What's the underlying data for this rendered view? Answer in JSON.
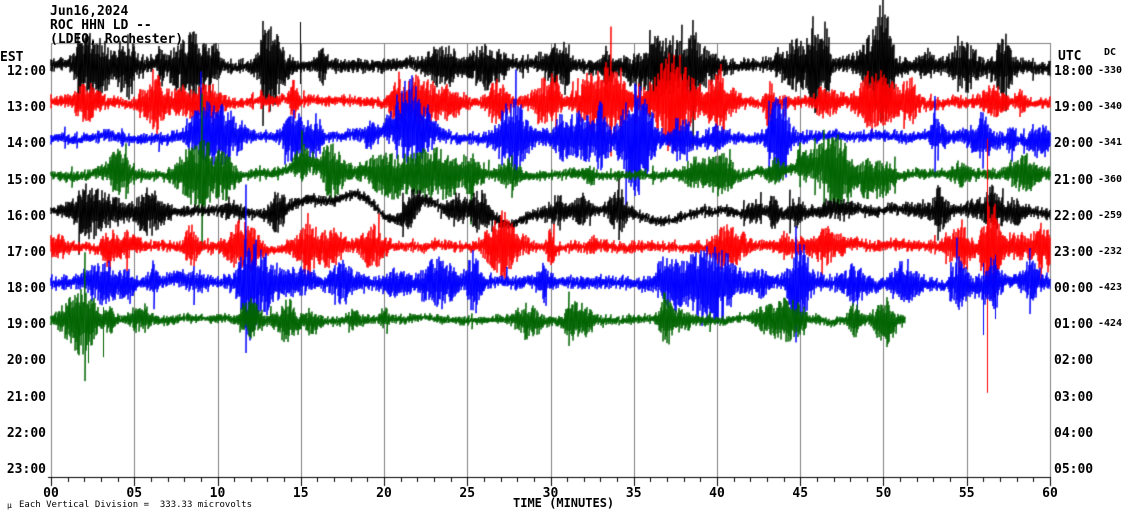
{
  "header": {
    "date": "Jun16,2024",
    "station": "ROC HHN LD --",
    "location": "(LDEO, Rochester)"
  },
  "left_axis": {
    "label": "EST",
    "times": [
      "12:00",
      "13:00",
      "14:00",
      "15:00",
      "16:00",
      "17:00",
      "18:00",
      "19:00",
      "20:00",
      "21:00",
      "22:00",
      "23:00"
    ]
  },
  "right_axis": {
    "label": "UTC",
    "times": [
      "18:00",
      "19:00",
      "20:00",
      "21:00",
      "22:00",
      "23:00",
      "00:00",
      "01:00",
      "02:00",
      "03:00",
      "04:00",
      "05:00"
    ]
  },
  "dc_column": {
    "label": "DC",
    "values": [
      "-330",
      "-340",
      "-341",
      "-360",
      "-259",
      "-232",
      "-423",
      "-424"
    ]
  },
  "x_axis": {
    "label": "TIME (MINUTES)",
    "tick_labels": [
      "00",
      "05",
      "10",
      "15",
      "20",
      "25",
      "30",
      "35",
      "40",
      "45",
      "50",
      "55",
      "60"
    ],
    "range_min": [
      0,
      60
    ],
    "major_tick_every_min": 5,
    "minor_tick_every_min": 1
  },
  "footer": {
    "symbol": "µ",
    "note": "Each Vertical Division =  333.33 microvolts"
  },
  "colors": {
    "background": "#ffffff",
    "grid": "#808080",
    "axis": "#000000",
    "text": "#000000",
    "trace_cycle": [
      "#000000",
      "#ff0000",
      "#0000ff",
      "#006400"
    ]
  },
  "chart_data": {
    "type": "line",
    "subtype": "helicorder-seismogram",
    "title": "ROC HHN LD -- (LDEO, Rochester) Jun16,2024",
    "xlabel": "TIME (MINUTES)",
    "x_range": [
      0,
      60
    ],
    "grid": "vertical-every-5-min",
    "vertical_division_microvolts": 333.33,
    "rows": [
      {
        "est": "12:00",
        "utc": "18:00",
        "dc": -330,
        "color": "#000000",
        "has_data": true,
        "end_min": 60,
        "seed": 101,
        "base_amp": 6.5,
        "burst_amp": 20,
        "n_bursts": 30,
        "events": [
          {
            "type": "burst",
            "min": 2.8,
            "width": 0.9,
            "amp": 24
          },
          {
            "type": "burst",
            "min": 13.6,
            "width": 0.7,
            "amp": 20
          },
          {
            "type": "spike",
            "min": 14.95,
            "up": 44,
            "down": 18
          },
          {
            "type": "burst",
            "min": 30.3,
            "width": 0.8,
            "amp": 18
          },
          {
            "type": "burst",
            "min": 49.4,
            "width": 1.0,
            "amp": 20
          },
          {
            "type": "burst",
            "min": 54.8,
            "width": 0.8,
            "amp": 22
          }
        ]
      },
      {
        "est": "13:00",
        "utc": "19:00",
        "dc": -340,
        "color": "#ff0000",
        "has_data": true,
        "end_min": 60,
        "seed": 202,
        "base_amp": 5.5,
        "burst_amp": 17,
        "n_bursts": 26,
        "events": [
          {
            "type": "burst",
            "min": 2.2,
            "width": 0.7,
            "amp": 20
          },
          {
            "type": "burst",
            "min": 26.8,
            "width": 0.6,
            "amp": 18
          },
          {
            "type": "burst",
            "min": 50.2,
            "width": 0.7,
            "amp": 18
          }
        ]
      },
      {
        "est": "14:00",
        "utc": "20:00",
        "dc": -341,
        "color": "#0000ff",
        "has_data": true,
        "end_min": 60,
        "seed": 303,
        "base_amp": 5.5,
        "burst_amp": 17,
        "n_bursts": 26,
        "events": [
          {
            "type": "burst",
            "min": 21.6,
            "width": 0.5,
            "amp": 30
          },
          {
            "type": "wander",
            "min": 21.3,
            "width": 2.0,
            "amp": -13
          },
          {
            "type": "burst",
            "min": 37.9,
            "width": 0.6,
            "amp": 22
          },
          {
            "type": "burst",
            "min": 43.8,
            "width": 0.6,
            "amp": 20
          }
        ]
      },
      {
        "est": "15:00",
        "utc": "21:00",
        "dc": -360,
        "color": "#006400",
        "has_data": true,
        "end_min": 60,
        "seed": 404,
        "base_amp": 5,
        "burst_amp": 15,
        "n_bursts": 24,
        "events": [
          {
            "type": "wander",
            "min": 15.5,
            "width": 1.2,
            "amp": -10
          },
          {
            "type": "wander",
            "min": 45.8,
            "width": 1.5,
            "amp": -12
          },
          {
            "type": "burst",
            "min": 9.3,
            "width": 0.7,
            "amp": 16
          },
          {
            "type": "burst",
            "min": 40.3,
            "width": 0.7,
            "amp": 18
          },
          {
            "type": "burst",
            "min": 49.9,
            "width": 0.7,
            "amp": 16
          }
        ]
      },
      {
        "est": "16:00",
        "utc": "22:00",
        "dc": -259,
        "color": "#000000",
        "has_data": true,
        "end_min": 60,
        "seed": 505,
        "base_amp": 5,
        "burst_amp": 14,
        "n_bursts": 22,
        "events": [
          {
            "type": "wander",
            "min": 15.3,
            "width": 1.1,
            "amp": -10
          },
          {
            "type": "wander",
            "min": 18.5,
            "width": 1.6,
            "amp": -16
          },
          {
            "type": "wander",
            "min": 20.5,
            "width": 1.4,
            "amp": 14
          },
          {
            "type": "wander",
            "min": 22.3,
            "width": 1.2,
            "amp": -12
          },
          {
            "type": "wander",
            "min": 27.5,
            "width": 1.2,
            "amp": 12
          },
          {
            "type": "wander",
            "min": 36.5,
            "width": 1.5,
            "amp": 10
          },
          {
            "type": "burst",
            "min": 2.0,
            "width": 0.8,
            "amp": 14
          }
        ]
      },
      {
        "est": "17:00",
        "utc": "23:00",
        "dc": -232,
        "color": "#ff0000",
        "has_data": true,
        "end_min": 60,
        "seed": 606,
        "base_amp": 5.5,
        "burst_amp": 15,
        "n_bursts": 24,
        "events": [
          {
            "type": "spike",
            "min": 56.2,
            "up": 108,
            "down": 146
          },
          {
            "type": "burst",
            "min": 56.2,
            "width": 0.4,
            "amp": 28
          },
          {
            "type": "burst",
            "min": 16.8,
            "width": 0.8,
            "amp": 16
          },
          {
            "type": "burst",
            "min": 27.0,
            "width": 0.7,
            "amp": 14
          }
        ]
      },
      {
        "est": "18:00",
        "utc": "00:00",
        "dc": -423,
        "color": "#0000ff",
        "has_data": true,
        "end_min": 60,
        "seed": 707,
        "base_amp": 6.5,
        "burst_amp": 17,
        "n_bursts": 26,
        "events": [
          {
            "type": "spike",
            "min": 48.4,
            "up": 12,
            "down": 40
          },
          {
            "type": "spike",
            "min": 56.0,
            "up": 20,
            "down": 52
          },
          {
            "type": "spike",
            "min": 56.7,
            "up": 28,
            "down": 36
          },
          {
            "type": "burst",
            "min": 3.2,
            "width": 0.9,
            "amp": 18
          },
          {
            "type": "burst",
            "min": 17.5,
            "width": 0.7,
            "amp": 16
          },
          {
            "type": "burst",
            "min": 39.5,
            "width": 0.8,
            "amp": 16
          }
        ]
      },
      {
        "est": "19:00",
        "utc": "01:00",
        "dc": -424,
        "color": "#006400",
        "has_data": true,
        "end_min": 51.3,
        "seed": 808,
        "base_amp": 4.5,
        "burst_amp": 13,
        "n_bursts": 18,
        "events": [
          {
            "type": "burst",
            "min": 1.6,
            "width": 1.0,
            "amp": 26
          },
          {
            "type": "spike",
            "min": 2.2,
            "up": 14,
            "down": 44
          },
          {
            "type": "spike",
            "min": 3.1,
            "up": 12,
            "down": 38
          },
          {
            "type": "burst",
            "min": 12.0,
            "width": 0.6,
            "amp": 18
          }
        ]
      },
      {
        "est": "20:00",
        "utc": "02:00",
        "has_data": false
      },
      {
        "est": "21:00",
        "utc": "03:00",
        "has_data": false
      },
      {
        "est": "22:00",
        "utc": "04:00",
        "has_data": false
      },
      {
        "est": "23:00",
        "utc": "05:00",
        "has_data": false
      }
    ]
  }
}
